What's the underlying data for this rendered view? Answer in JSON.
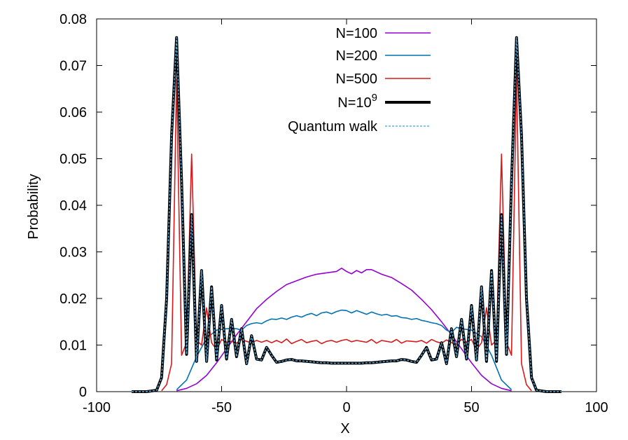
{
  "chart_data": {
    "type": "line",
    "title": "",
    "xlabel": "X",
    "ylabel": "Probability",
    "xlim": [
      -100,
      100
    ],
    "ylim": [
      0,
      0.08
    ],
    "xticks": [
      -100,
      -50,
      0,
      50,
      100
    ],
    "xtick_labels": [
      "-100",
      "-50",
      "0",
      "50",
      "100"
    ],
    "yticks": [
      0,
      0.01,
      0.02,
      0.03,
      0.04,
      0.05,
      0.06,
      0.07,
      0.08
    ],
    "ytick_labels": [
      "0",
      "0.01",
      "0.02",
      "0.03",
      "0.04",
      "0.05",
      "0.06",
      "0.07",
      "0.08"
    ],
    "grid": false,
    "legend_position": "top-right",
    "series": [
      {
        "name": "N=100",
        "color": "#9400d3",
        "points": [
          [
            -68,
            0.0002
          ],
          [
            -64,
            0.0007
          ],
          [
            -60,
            0.0017
          ],
          [
            -56,
            0.0035
          ],
          [
            -52,
            0.0062
          ],
          [
            -48,
            0.0092
          ],
          [
            -44,
            0.0122
          ],
          [
            -40,
            0.015
          ],
          [
            -36,
            0.0178
          ],
          [
            -32,
            0.0198
          ],
          [
            -28,
            0.0215
          ],
          [
            -24,
            0.023
          ],
          [
            -20,
            0.0238
          ],
          [
            -16,
            0.0246
          ],
          [
            -12,
            0.0252
          ],
          [
            -8,
            0.0255
          ],
          [
            -4,
            0.0258
          ],
          [
            -2,
            0.0265
          ],
          [
            0,
            0.0258
          ],
          [
            2,
            0.0253
          ],
          [
            4,
            0.026
          ],
          [
            6,
            0.0255
          ],
          [
            8,
            0.0262
          ],
          [
            10,
            0.0262
          ],
          [
            14,
            0.0252
          ],
          [
            18,
            0.0245
          ],
          [
            22,
            0.0232
          ],
          [
            26,
            0.0218
          ],
          [
            30,
            0.0198
          ],
          [
            34,
            0.0176
          ],
          [
            38,
            0.015
          ],
          [
            42,
            0.0122
          ],
          [
            46,
            0.0092
          ],
          [
            50,
            0.0062
          ],
          [
            54,
            0.0035
          ],
          [
            58,
            0.0017
          ],
          [
            62,
            0.0007
          ],
          [
            66,
            0.0002
          ]
        ]
      },
      {
        "name": "N=200",
        "color": "#0072b2",
        "points": [
          [
            -68,
            0.0004
          ],
          [
            -64,
            0.0025
          ],
          [
            -60,
            0.0075
          ],
          [
            -56,
            0.0115
          ],
          [
            -52,
            0.0132
          ],
          [
            -48,
            0.0135
          ],
          [
            -44,
            0.0135
          ],
          [
            -42,
            0.0132
          ],
          [
            -40,
            0.0142
          ],
          [
            -38,
            0.0146
          ],
          [
            -36,
            0.0148
          ],
          [
            -34,
            0.0146
          ],
          [
            -32,
            0.0152
          ],
          [
            -30,
            0.0156
          ],
          [
            -28,
            0.0155
          ],
          [
            -26,
            0.0158
          ],
          [
            -24,
            0.0155
          ],
          [
            -22,
            0.016
          ],
          [
            -20,
            0.0163
          ],
          [
            -18,
            0.016
          ],
          [
            -16,
            0.0165
          ],
          [
            -14,
            0.0168
          ],
          [
            -12,
            0.0163
          ],
          [
            -10,
            0.0169
          ],
          [
            -8,
            0.0171
          ],
          [
            -6,
            0.0167
          ],
          [
            -4,
            0.0172
          ],
          [
            -2,
            0.0175
          ],
          [
            0,
            0.0174
          ],
          [
            2,
            0.0169
          ],
          [
            4,
            0.0174
          ],
          [
            6,
            0.017
          ],
          [
            8,
            0.0166
          ],
          [
            10,
            0.0171
          ],
          [
            12,
            0.0167
          ],
          [
            14,
            0.0164
          ],
          [
            16,
            0.0166
          ],
          [
            18,
            0.0162
          ],
          [
            20,
            0.0163
          ],
          [
            22,
            0.0159
          ],
          [
            24,
            0.0158
          ],
          [
            26,
            0.0155
          ],
          [
            28,
            0.0157
          ],
          [
            30,
            0.0153
          ],
          [
            32,
            0.0151
          ],
          [
            34,
            0.0148
          ],
          [
            36,
            0.0146
          ],
          [
            38,
            0.0142
          ],
          [
            40,
            0.0132
          ],
          [
            42,
            0.0127
          ],
          [
            44,
            0.0138
          ],
          [
            46,
            0.0135
          ],
          [
            50,
            0.0132
          ],
          [
            54,
            0.0118
          ],
          [
            58,
            0.0078
          ],
          [
            62,
            0.0025
          ],
          [
            66,
            0.0004
          ]
        ]
      },
      {
        "name": "N=500",
        "color": "#d7191c",
        "points": [
          [
            -74,
            0.0002
          ],
          [
            -72,
            0.0015
          ],
          [
            -70,
            0.006
          ],
          [
            -68,
            0.067
          ],
          [
            -66,
            0.0078
          ],
          [
            -64,
            0.0105
          ],
          [
            -62,
            0.051
          ],
          [
            -60,
            0.011
          ],
          [
            -58,
            0.01
          ],
          [
            -56,
            0.018
          ],
          [
            -54,
            0.0105
          ],
          [
            -52,
            0.009
          ],
          [
            -50,
            0.0112
          ],
          [
            -48,
            0.0106
          ],
          [
            -46,
            0.0108
          ],
          [
            -44,
            0.0104
          ],
          [
            -42,
            0.0112
          ],
          [
            -40,
            0.0108
          ],
          [
            -38,
            0.0105
          ],
          [
            -36,
            0.011
          ],
          [
            -34,
            0.0106
          ],
          [
            -32,
            0.011
          ],
          [
            -30,
            0.0105
          ],
          [
            -28,
            0.011
          ],
          [
            -26,
            0.0105
          ],
          [
            -24,
            0.0113
          ],
          [
            -22,
            0.0103
          ],
          [
            -20,
            0.0108
          ],
          [
            -18,
            0.0112
          ],
          [
            -16,
            0.0105
          ],
          [
            -14,
            0.0108
          ],
          [
            -12,
            0.011
          ],
          [
            -10,
            0.0103
          ],
          [
            -8,
            0.0108
          ],
          [
            -6,
            0.011
          ],
          [
            -4,
            0.0106
          ],
          [
            -2,
            0.011
          ],
          [
            0,
            0.0112
          ],
          [
            2,
            0.0107
          ],
          [
            4,
            0.011
          ],
          [
            6,
            0.0108
          ],
          [
            8,
            0.0106
          ],
          [
            10,
            0.0112
          ],
          [
            12,
            0.0104
          ],
          [
            14,
            0.011
          ],
          [
            16,
            0.0108
          ],
          [
            18,
            0.0106
          ],
          [
            20,
            0.0112
          ],
          [
            22,
            0.0104
          ],
          [
            24,
            0.0109
          ],
          [
            26,
            0.0108
          ],
          [
            28,
            0.0107
          ],
          [
            30,
            0.011
          ],
          [
            32,
            0.0104
          ],
          [
            34,
            0.0112
          ],
          [
            36,
            0.0107
          ],
          [
            38,
            0.0104
          ],
          [
            40,
            0.0111
          ],
          [
            42,
            0.0105
          ],
          [
            44,
            0.0102
          ],
          [
            46,
            0.0112
          ],
          [
            48,
            0.0106
          ],
          [
            50,
            0.0112
          ],
          [
            52,
            0.009
          ],
          [
            54,
            0.0105
          ],
          [
            56,
            0.018
          ],
          [
            58,
            0.01
          ],
          [
            60,
            0.011
          ],
          [
            62,
            0.051
          ],
          [
            64,
            0.0105
          ],
          [
            66,
            0.0078
          ],
          [
            68,
            0.068
          ],
          [
            70,
            0.006
          ],
          [
            72,
            0.0015
          ],
          [
            74,
            0.0002
          ]
        ]
      },
      {
        "name": "N=10^9",
        "label_base": "N=10",
        "label_sup": "9",
        "color": "#000000",
        "points": [
          [
            -86,
            0
          ],
          [
            -80,
            0
          ],
          [
            -76,
            0.0003
          ],
          [
            -74,
            0.003
          ],
          [
            -72,
            0.02
          ],
          [
            -70,
            0.055
          ],
          [
            -68,
            0.076
          ],
          [
            -66,
            0.045
          ],
          [
            -64,
            0.008
          ],
          [
            -62,
            0.038
          ],
          [
            -60,
            0.0065
          ],
          [
            -58,
            0.026
          ],
          [
            -56,
            0.0065
          ],
          [
            -54,
            0.0225
          ],
          [
            -52,
            0.0068
          ],
          [
            -50,
            0.0185
          ],
          [
            -48,
            0.007
          ],
          [
            -46,
            0.0155
          ],
          [
            -44,
            0.0075
          ],
          [
            -42,
            0.0135
          ],
          [
            -40,
            0.006
          ],
          [
            -38,
            0.012
          ],
          [
            -36,
            0.007
          ],
          [
            -34,
            0.0068
          ],
          [
            -32,
            0.0095
          ],
          [
            -30,
            0.0078
          ],
          [
            -28,
            0.0063
          ],
          [
            -26,
            0.0065
          ],
          [
            -24,
            0.0068
          ],
          [
            -22,
            0.0069
          ],
          [
            -20,
            0.0066
          ],
          [
            -18,
            0.0066
          ],
          [
            -16,
            0.0065
          ],
          [
            -14,
            0.0064
          ],
          [
            -12,
            0.0063
          ],
          [
            -10,
            0.0062
          ],
          [
            -8,
            0.0062
          ],
          [
            -6,
            0.0061
          ],
          [
            -4,
            0.0061
          ],
          [
            -2,
            0.0061
          ],
          [
            0,
            0.0061
          ],
          [
            2,
            0.0061
          ],
          [
            4,
            0.0061
          ],
          [
            6,
            0.0061
          ],
          [
            8,
            0.0062
          ],
          [
            10,
            0.0062
          ],
          [
            12,
            0.0063
          ],
          [
            14,
            0.0064
          ],
          [
            16,
            0.0065
          ],
          [
            18,
            0.0066
          ],
          [
            20,
            0.0066
          ],
          [
            22,
            0.0069
          ],
          [
            24,
            0.0068
          ],
          [
            26,
            0.0065
          ],
          [
            28,
            0.0063
          ],
          [
            30,
            0.0078
          ],
          [
            32,
            0.0095
          ],
          [
            34,
            0.0068
          ],
          [
            36,
            0.007
          ],
          [
            38,
            0.0105
          ],
          [
            40,
            0.006
          ],
          [
            42,
            0.0135
          ],
          [
            44,
            0.0075
          ],
          [
            46,
            0.0155
          ],
          [
            48,
            0.007
          ],
          [
            50,
            0.0185
          ],
          [
            52,
            0.0068
          ],
          [
            54,
            0.0225
          ],
          [
            56,
            0.0065
          ],
          [
            58,
            0.026
          ],
          [
            60,
            0.0065
          ],
          [
            62,
            0.038
          ],
          [
            64,
            0.008
          ],
          [
            66,
            0.045
          ],
          [
            68,
            0.076
          ],
          [
            70,
            0.055
          ],
          [
            72,
            0.02
          ],
          [
            74,
            0.003
          ],
          [
            76,
            0.0003
          ],
          [
            80,
            0
          ],
          [
            86,
            0
          ]
        ]
      },
      {
        "name": "Quantum walk",
        "color": "#56b4e9",
        "style": "dotted",
        "same_as": "N=10^9"
      }
    ]
  }
}
